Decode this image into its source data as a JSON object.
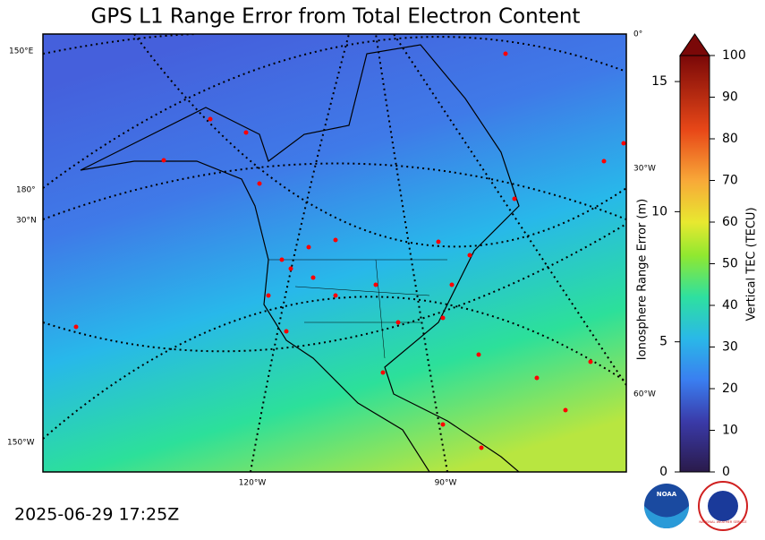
{
  "title": "GPS L1 Range Error from Total Electron Content",
  "timestamp": "2025-06-29 17:25Z",
  "map": {
    "graticule_labels": [
      "150°E",
      "180°",
      "30°N",
      "150°W",
      "120°W",
      "90°W",
      "0°",
      "30°W",
      "60°W"
    ]
  },
  "colorbar": {
    "range_error": {
      "label": "Ionosphere Range Error (m)",
      "lim": [
        0,
        16
      ],
      "ticks": [
        0,
        5,
        10,
        15
      ]
    },
    "tec": {
      "label": "Vertical TEC (TECU)",
      "lim": [
        0,
        100
      ],
      "ticks": [
        0,
        10,
        20,
        30,
        40,
        50,
        60,
        70,
        80,
        90,
        100
      ]
    }
  },
  "logos": {
    "noaa": "NOAA",
    "nws": "NATIONAL WEATHER SERVICE"
  }
}
